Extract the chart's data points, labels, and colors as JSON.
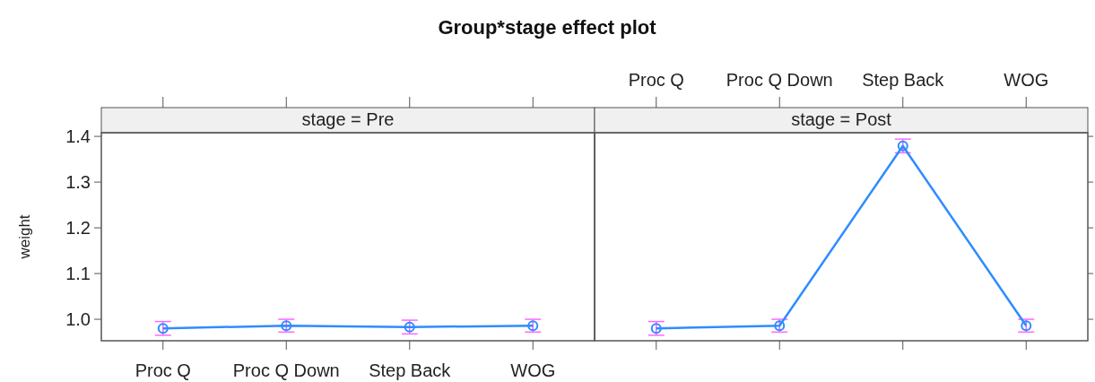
{
  "chart_data": [
    {
      "type": "line",
      "title": "Group*stage effect plot",
      "subtitle": "stage = Pre",
      "ylabel": "weight",
      "categories": [
        "Proc Q",
        "Proc Q Down",
        "Step Back",
        "WOG"
      ],
      "series": [
        {
          "color": "#2f8cff",
          "values": [
            0.98,
            0.986,
            0.983,
            0.986
          ],
          "errors": [
            0.015,
            0.014,
            0.015,
            0.014
          ]
        }
      ],
      "ylim": [
        0.953,
        1.408
      ],
      "yticks": [
        {
          "value": 1,
          "label": "1.0"
        },
        1.1,
        1.2,
        1.3,
        1.4
      ],
      "grid": false,
      "marker": "circle",
      "line_style": "solid"
    },
    {
      "type": "line",
      "subtitle": "stage = Post",
      "categories": [
        "Proc Q",
        "Proc Q Down",
        "Step Back",
        "WOG"
      ],
      "series": [
        {
          "color": "#2f8cff",
          "values": [
            0.98,
            0.986,
            1.379,
            0.986
          ],
          "errors": [
            0.015,
            0.014,
            0.015,
            0.014
          ]
        }
      ],
      "ylim": [
        0.953,
        1.408
      ],
      "yticks": [
        1,
        1.1,
        1.2,
        1.3,
        1.4
      ],
      "grid": false,
      "marker": "circle",
      "line_style": "solid",
      "tick_labels": "x"
    }
  ]
}
